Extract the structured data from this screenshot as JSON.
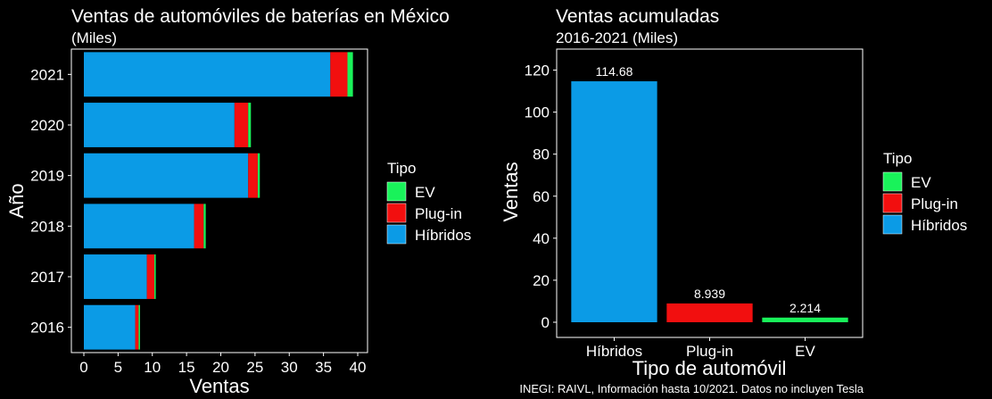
{
  "colors": {
    "background": "#000000",
    "text": "#ffffff",
    "panel_border": "#ffffff",
    "EV": "#19f25a",
    "Plug-in": "#f20f0f",
    "Híbridos": "#0b9be6"
  },
  "chart_data": [
    {
      "type": "bar",
      "orientation": "horizontal",
      "stacked": true,
      "title": "Ventas de automóviles de baterías en México",
      "subtitle": "(Miles)",
      "xlabel": "Ventas",
      "ylabel": "Año",
      "xlim": [
        0,
        40
      ],
      "x_ticks": [
        0,
        5,
        10,
        15,
        20,
        25,
        30,
        35,
        40
      ],
      "categories": [
        "2016",
        "2017",
        "2018",
        "2019",
        "2020",
        "2021"
      ],
      "series": [
        {
          "name": "Híbridos",
          "values": [
            7.5,
            9.2,
            16.1,
            24.0,
            22.0,
            36.0
          ]
        },
        {
          "name": "Plug-in",
          "values": [
            0.5,
            1.1,
            1.4,
            1.4,
            2.0,
            2.5
          ]
        },
        {
          "name": "EV",
          "values": [
            0.2,
            0.2,
            0.3,
            0.3,
            0.4,
            0.8
          ]
        }
      ],
      "legend": {
        "title": "Tipo",
        "entries": [
          "EV",
          "Plug-in",
          "Híbridos"
        ],
        "position": "right"
      },
      "grid": false
    },
    {
      "type": "bar",
      "title": "Ventas acumuladas",
      "subtitle": "2016-2021 (Miles)",
      "xlabel": "Tipo de automóvil",
      "ylabel": "Ventas",
      "ylim": [
        0,
        130
      ],
      "y_ticks": [
        0,
        20,
        40,
        60,
        80,
        100,
        120
      ],
      "categories": [
        "Híbridos",
        "Plug-in",
        "EV"
      ],
      "values": [
        114.68,
        8.939,
        2.214
      ],
      "data_labels": [
        "114.68",
        "8.939",
        "2.214"
      ],
      "legend": {
        "title": "Tipo",
        "entries": [
          "EV",
          "Plug-in",
          "Híbridos"
        ],
        "position": "right"
      },
      "grid": false
    }
  ],
  "caption": "INEGI: RAIVL, Información hasta 10/2021. Datos no incluyen Tesla"
}
